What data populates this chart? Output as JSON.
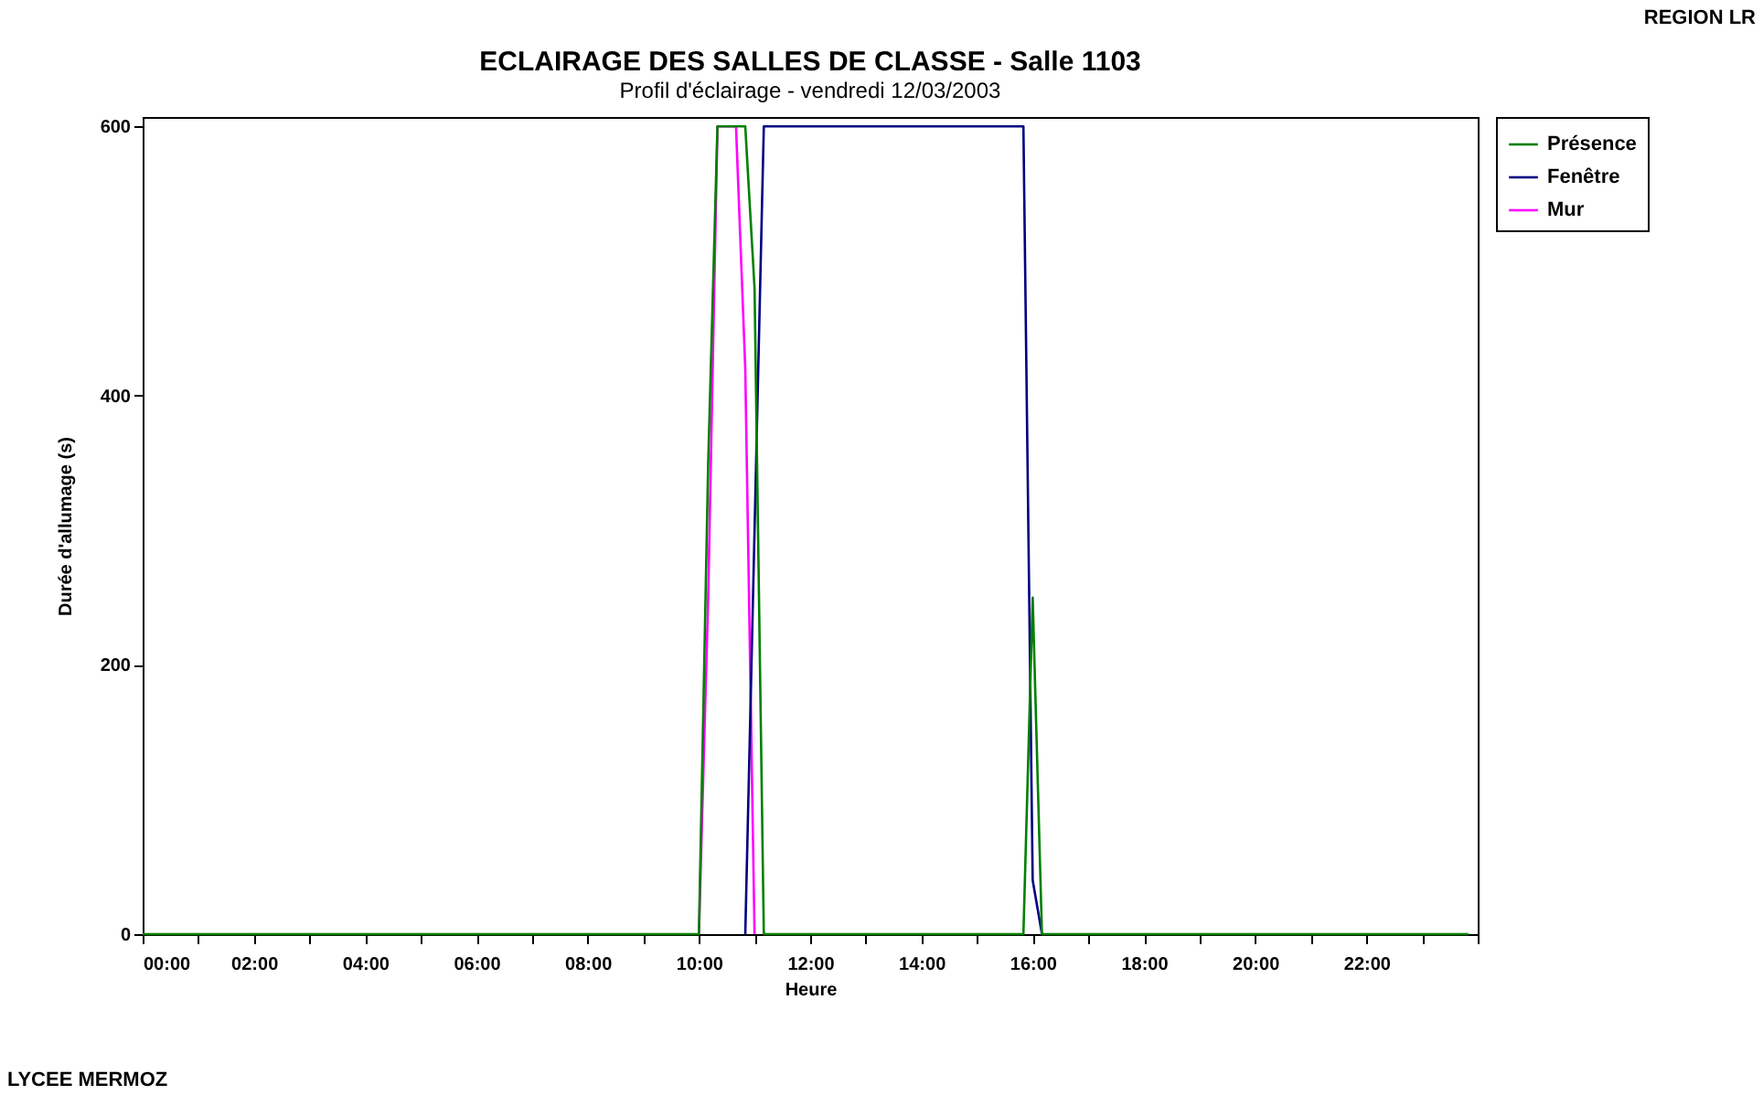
{
  "chart_data": {
    "type": "line",
    "title": "ECLAIRAGE DES SALLES DE CLASSE - Salle 1103",
    "subtitle": "Profil d'éclairage - vendredi 12/03/2003",
    "xlabel": "Heure",
    "ylabel": "Durée d'allumage (s)",
    "annotations": [
      "REGION LR",
      "LYCEE MERMOZ"
    ],
    "series": [
      {
        "name": "Présence",
        "color": "#008000",
        "x": [
          0,
          10.0,
          10.1667,
          10.3333,
          10.8333,
          11.0,
          11.1667,
          15.8333,
          16.0,
          16.1667,
          23.8333
        ],
        "values": [
          0,
          0,
          350,
          600,
          600,
          480,
          0,
          0,
          250,
          0,
          0
        ]
      },
      {
        "name": "Fenêtre",
        "color": "#000080",
        "x": [
          10.8333,
          11.0,
          11.1667,
          15.8333,
          16.0,
          16.1667
        ],
        "values": [
          0,
          300,
          600,
          600,
          40,
          0
        ]
      },
      {
        "name": "Mur",
        "color": "#ff00ff",
        "x": [
          10.0,
          10.1667,
          10.3333,
          10.6667,
          10.8333,
          11.0
        ],
        "values": [
          0,
          250,
          600,
          600,
          420,
          0
        ]
      }
    ],
    "xlim": [
      0,
      24
    ],
    "xticks": [
      {
        "value": 0,
        "label": "00:00"
      },
      {
        "value": 1,
        "label": null
      },
      {
        "value": 2,
        "label": "02:00"
      },
      {
        "value": 3,
        "label": null
      },
      {
        "value": 4,
        "label": "04:00"
      },
      {
        "value": 5,
        "label": null
      },
      {
        "value": 6,
        "label": "06:00"
      },
      {
        "value": 7,
        "label": null
      },
      {
        "value": 8,
        "label": "08:00"
      },
      {
        "value": 9,
        "label": null
      },
      {
        "value": 10,
        "label": "10:00"
      },
      {
        "value": 11,
        "label": null
      },
      {
        "value": 12,
        "label": "12:00"
      },
      {
        "value": 13,
        "label": null
      },
      {
        "value": 14,
        "label": "14:00"
      },
      {
        "value": 15,
        "label": null
      },
      {
        "value": 16,
        "label": "16:00"
      },
      {
        "value": 17,
        "label": null
      },
      {
        "value": 18,
        "label": "18:00"
      },
      {
        "value": 19,
        "label": null
      },
      {
        "value": 20,
        "label": "20:00"
      },
      {
        "value": 21,
        "label": null
      },
      {
        "value": 22,
        "label": "22:00"
      },
      {
        "value": 23,
        "label": null
      },
      {
        "value": 24,
        "label": null
      }
    ],
    "ylim": [
      0,
      607
    ],
    "yticks": [
      0,
      200,
      400,
      600
    ],
    "grid": false,
    "legend": "right",
    "marker": "none",
    "line_style": "solid"
  }
}
